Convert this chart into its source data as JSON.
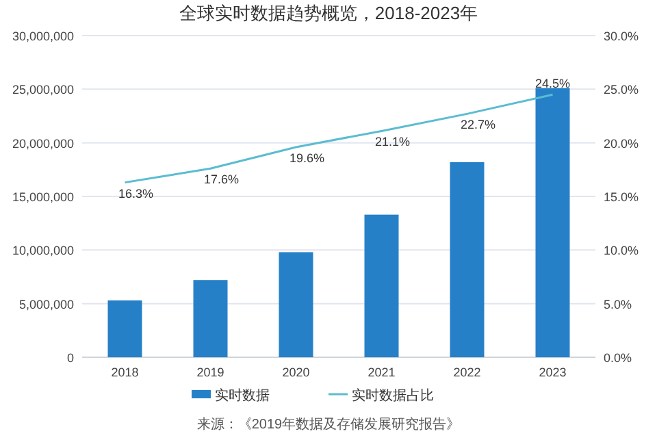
{
  "chart_data": {
    "type": "bar",
    "title": "全球实时数据趋势概览，2018-2023年",
    "categories": [
      "2018",
      "2019",
      "2020",
      "2021",
      "2022",
      "2023"
    ],
    "series": [
      {
        "name": "实时数据",
        "color": "#2680c8",
        "values": [
          5300000,
          7200000,
          9800000,
          13300000,
          18200000,
          25100000
        ]
      },
      {
        "name": "实时数据占比",
        "type": "line",
        "axis": "y2",
        "color": "#5bbcd0",
        "values": [
          16.3,
          17.6,
          19.6,
          21.1,
          22.7,
          24.5
        ],
        "data_labels": true,
        "value_labels": [
          "16.3%",
          "17.6%",
          "19.6%",
          "21.1%",
          "22.7%",
          "24.5%"
        ]
      }
    ],
    "ylim": [
      0,
      30000000
    ],
    "yticks": [
      {
        "value": 0,
        "label": "0"
      },
      {
        "value": 5000000,
        "label": "5,000,000"
      },
      {
        "value": 10000000,
        "label": "10,000,000"
      },
      {
        "value": 15000000,
        "label": "15,000,000"
      },
      {
        "value": 20000000,
        "label": "20,000,000"
      },
      {
        "value": 25000000,
        "label": "25,000,000"
      },
      {
        "value": 30000000,
        "label": "30,000,000"
      }
    ],
    "y2lim": [
      0,
      30
    ],
    "y2ticks": [
      {
        "value": 0,
        "label": "0.0%"
      },
      {
        "value": 5,
        "label": "5.0%"
      },
      {
        "value": 10,
        "label": "10.0%"
      },
      {
        "value": 15,
        "label": "15.0%"
      },
      {
        "value": 20,
        "label": "20.0%"
      },
      {
        "value": 25,
        "label": "25.0%"
      },
      {
        "value": 30,
        "label": "30.0%"
      }
    ],
    "grid": "y",
    "legend": "bottom",
    "marker": "none",
    "line_style": "solid",
    "annotations": [
      "来源：《2019年数据及存储发展研究报告》"
    ]
  }
}
